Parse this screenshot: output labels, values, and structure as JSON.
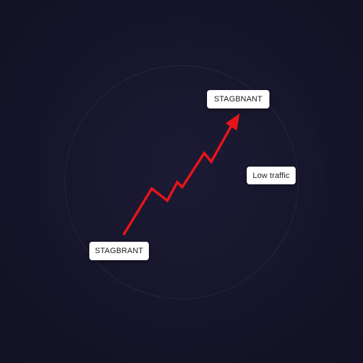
{
  "labels": {
    "top": "STAGBNANT",
    "bottom": "STAGBRANT",
    "right": "Low traffic"
  },
  "arrow": {
    "color": "#e8141b"
  }
}
